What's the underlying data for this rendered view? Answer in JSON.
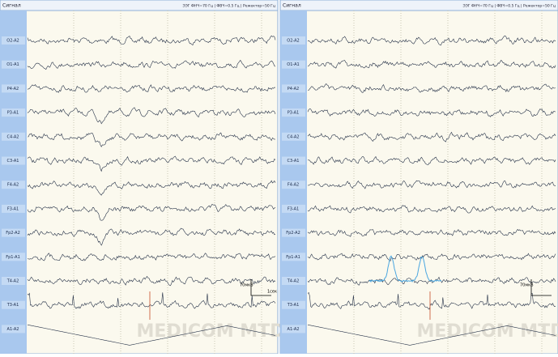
{
  "panels": [
    {
      "title": "Сигнал",
      "settings": "ЭЭГ ФНЧ=70 Гц | ФВЧ=0.5 Гц | Режектор=50 Гц",
      "channels": [
        "O2-A2",
        "O1-A1",
        "P4-A2",
        "P3-A1",
        "C4-A2",
        "C3-A1",
        "F4-A2",
        "F3-A1",
        "Fp2-A2",
        "Fp1-A1",
        "T4-A2",
        "T3-A1",
        "A1-A2"
      ],
      "scale": {
        "amplitude": "70мкВ",
        "time": "1сек"
      }
    },
    {
      "title": "Сигнал",
      "settings": "ЭЭГ ФНЧ=70 Гц | ФВЧ=0.5 Гц | Режектор=50 Гц",
      "channels": [
        "O2-A2",
        "O1-A1",
        "P4-A2",
        "P3-A1",
        "C4-A2",
        "C3-A1",
        "F4-A2",
        "F3-A1",
        "Fp2-A2",
        "Fp1-A1",
        "T4-A2",
        "T3-A1",
        "A1-A2"
      ],
      "scale": {
        "amplitude": "70мкВ"
      }
    }
  ],
  "watermark": "MEDICOM MTD"
}
